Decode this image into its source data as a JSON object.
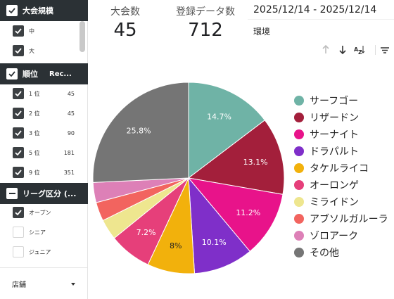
{
  "sidebar": {
    "groups": [
      {
        "header": "大会規模",
        "items": [
          {
            "label": "中",
            "checked": true
          },
          {
            "label": "大",
            "checked": true
          }
        ]
      },
      {
        "header": "順位",
        "header_col2": "Rec...",
        "items": [
          {
            "label": "1 位",
            "count": "45",
            "checked": true
          },
          {
            "label": "2 位",
            "count": "45",
            "checked": true
          },
          {
            "label": "3 位",
            "count": "90",
            "checked": true
          },
          {
            "label": "5 位",
            "count": "181",
            "checked": true
          },
          {
            "label": "9 位",
            "count": "351",
            "checked": true
          }
        ]
      },
      {
        "header": "リーグ区分 (...",
        "items": [
          {
            "label": "オープン",
            "checked": true
          },
          {
            "label": "シニア",
            "checked": false
          },
          {
            "label": "ジュニア",
            "checked": false
          }
        ]
      }
    ],
    "store_dropdown": "店舗"
  },
  "kpis": {
    "tournaments": {
      "title": "大会数",
      "value": "45"
    },
    "records": {
      "title": "登録データ数",
      "value": "712"
    }
  },
  "date_range": "2025/12/14 - 2025/12/14",
  "environment_title": "環境",
  "toolbar": {
    "icons": [
      "arrow-up-icon",
      "arrow-down-icon",
      "sort-az-icon",
      "filter-icon"
    ]
  },
  "colors": {
    "sidebar_header": "#2b3135",
    "slices": [
      "#6fb3a6",
      "#a31f3b",
      "#e8138a",
      "#7f2fc9",
      "#f2b10c",
      "#e63f7a",
      "#eee68f",
      "#f2645f",
      "#dd80b7",
      "#757575"
    ]
  },
  "chart_data": {
    "type": "pie",
    "labels": [
      "サーフゴー",
      "リザードン",
      "サーナイト",
      "ドラパルト",
      "タケルライコ",
      "オーロンゲ",
      "ミライドン",
      "アブソルガルーラ",
      "ゾロアーク",
      "その他"
    ],
    "values": [
      14.7,
      13.1,
      11.2,
      10.1,
      8.0,
      7.2,
      3.5,
      3.2,
      3.4,
      25.8
    ],
    "value_labels": [
      "14.7%",
      "13.1%",
      "11.2%",
      "10.1%",
      "8%",
      "7.2%",
      "",
      "",
      "",
      "25.8%"
    ],
    "legend_position": "right"
  }
}
